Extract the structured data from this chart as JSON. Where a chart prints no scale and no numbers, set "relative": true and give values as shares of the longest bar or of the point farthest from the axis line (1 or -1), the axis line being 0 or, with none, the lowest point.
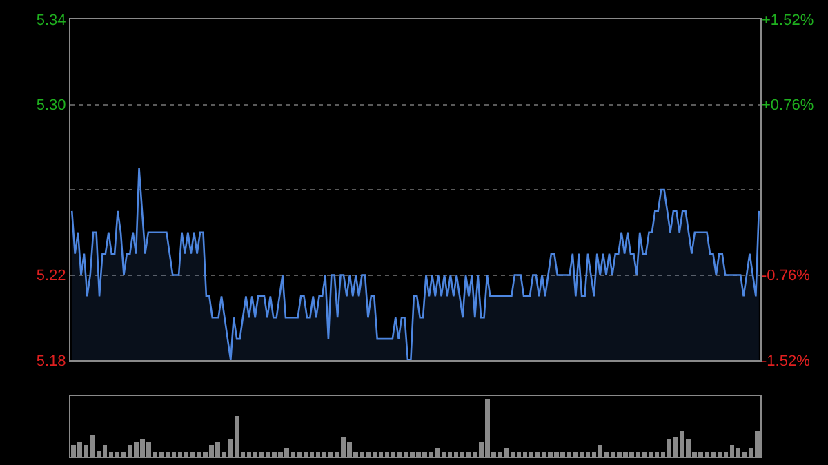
{
  "chart_data": [
    {
      "type": "area",
      "categories": [
        null,
        null,
        null,
        null,
        null,
        null,
        null,
        null,
        null,
        null,
        null,
        null,
        null,
        null,
        null,
        null,
        null,
        null,
        null,
        null,
        null,
        null,
        null,
        null,
        null,
        null,
        null,
        null,
        null,
        null,
        null,
        null,
        null,
        null,
        null,
        null,
        null,
        null,
        null,
        null,
        null,
        null,
        null,
        null,
        null,
        null,
        null,
        null,
        null,
        null,
        null,
        null,
        null,
        null,
        null,
        null,
        null,
        null,
        null,
        null,
        null,
        null,
        null,
        null,
        null,
        null,
        null,
        null,
        null,
        null,
        null,
        null,
        null,
        null,
        null,
        null,
        null,
        null,
        null,
        null,
        null,
        null,
        null,
        null,
        null,
        null,
        null,
        null,
        null,
        null,
        null,
        null,
        null,
        null,
        null,
        null,
        null,
        null,
        null,
        null,
        null,
        null,
        null,
        null,
        null,
        null,
        null,
        null,
        null,
        null,
        null,
        null,
        null,
        null,
        null,
        null,
        null,
        null,
        null,
        null,
        null,
        null,
        null,
        null,
        null,
        null,
        null,
        null,
        null,
        null,
        null,
        null,
        null,
        null,
        null,
        null,
        null,
        null,
        null,
        null,
        null,
        null,
        null,
        null,
        null,
        null,
        null,
        null,
        null,
        null,
        null,
        null,
        null,
        null,
        null,
        null,
        null,
        null,
        null,
        null,
        null,
        null,
        null,
        null,
        null,
        null,
        null,
        null,
        null,
        null,
        null,
        null,
        null,
        null,
        null,
        null,
        null,
        null,
        null,
        null,
        null,
        null,
        null,
        null,
        null,
        null,
        null,
        null,
        null,
        null,
        null,
        null,
        null,
        null,
        null,
        null,
        null,
        null,
        null,
        null,
        null,
        null,
        null,
        null,
        null,
        null,
        null,
        null,
        null,
        null,
        null,
        null,
        null,
        null,
        null,
        null,
        null,
        null,
        null,
        null,
        null,
        null,
        null,
        null,
        null,
        null
      ],
      "series": [
        {
          "color": "#4d86e0",
          "values": [
            5.25,
            5.23,
            5.24,
            5.22,
            5.23,
            5.21,
            5.22,
            5.24,
            5.24,
            5.21,
            5.23,
            5.23,
            5.24,
            5.23,
            5.23,
            5.25,
            5.24,
            5.22,
            5.23,
            5.23,
            5.24,
            5.23,
            5.27,
            5.25,
            5.23,
            5.24,
            5.24,
            5.24,
            5.24,
            5.24,
            5.24,
            5.24,
            5.23,
            5.22,
            5.22,
            5.22,
            5.24,
            5.23,
            5.24,
            5.23,
            5.24,
            5.23,
            5.24,
            5.24,
            5.21,
            5.21,
            5.2,
            5.2,
            5.2,
            5.21,
            5.2,
            5.19,
            5.18,
            5.2,
            5.19,
            5.19,
            5.2,
            5.21,
            5.2,
            5.21,
            5.2,
            5.21,
            5.21,
            5.21,
            5.2,
            5.21,
            5.2,
            5.2,
            5.21,
            5.22,
            5.2,
            5.2,
            5.2,
            5.2,
            5.2,
            5.21,
            5.21,
            5.2,
            5.2,
            5.21,
            5.2,
            5.21,
            5.21,
            5.22,
            5.19,
            5.22,
            5.22,
            5.2,
            5.22,
            5.22,
            5.21,
            5.22,
            5.21,
            5.22,
            5.21,
            5.22,
            5.22,
            5.2,
            5.21,
            5.21,
            5.19,
            5.19,
            5.19,
            5.19,
            5.19,
            5.19,
            5.2,
            5.19,
            5.2,
            5.2,
            5.18,
            5.18,
            5.21,
            5.21,
            5.2,
            5.2,
            5.22,
            5.21,
            5.22,
            5.21,
            5.22,
            5.21,
            5.22,
            5.21,
            5.22,
            5.21,
            5.22,
            5.21,
            5.2,
            5.22,
            5.21,
            5.22,
            5.2,
            5.22,
            5.2,
            5.2,
            5.22,
            5.21,
            5.21,
            5.21,
            5.21,
            5.21,
            5.21,
            5.21,
            5.21,
            5.22,
            5.22,
            5.22,
            5.21,
            5.21,
            5.21,
            5.22,
            5.22,
            5.21,
            5.22,
            5.21,
            5.22,
            5.23,
            5.23,
            5.22,
            5.22,
            5.22,
            5.22,
            5.22,
            5.23,
            5.21,
            5.23,
            5.21,
            5.21,
            5.23,
            5.22,
            5.21,
            5.23,
            5.22,
            5.23,
            5.22,
            5.23,
            5.22,
            5.23,
            5.23,
            5.24,
            5.23,
            5.24,
            5.23,
            5.23,
            5.22,
            5.24,
            5.23,
            5.23,
            5.24,
            5.24,
            5.25,
            5.25,
            5.26,
            5.26,
            5.25,
            5.24,
            5.25,
            5.25,
            5.24,
            5.25,
            5.25,
            5.24,
            5.23,
            5.24,
            5.24,
            5.24,
            5.24,
            5.24,
            5.23,
            5.23,
            5.22,
            5.23,
            5.23,
            5.22,
            5.22,
            5.22,
            5.22,
            5.22,
            5.22,
            5.21,
            5.22,
            5.23,
            5.22,
            5.21,
            5.25
          ]
        }
      ],
      "ylim": [
        5.18,
        5.34
      ],
      "yticks": [
        5.18,
        5.22,
        {
          "value": 5.26,
          "label": null
        },
        {
          "value": 5.3,
          "label": "5.30"
        },
        5.34
      ],
      "y2lim": [
        -1.52,
        1.52
      ],
      "y2ticks": [
        {
          "value": -1.52,
          "label": "-1.52%"
        },
        {
          "value": -0.76,
          "label": "-0.76%"
        },
        {
          "value": 0,
          "label": null
        },
        {
          "value": 0.76,
          "label": "+0.76%"
        },
        {
          "value": 1.52,
          "label": "+1.52%"
        }
      ],
      "grid": "y"
    },
    {
      "type": "bar",
      "relative": true,
      "color": "#8a8a8a",
      "categories": [
        null,
        null,
        null,
        null,
        null,
        null,
        null,
        null,
        null,
        null,
        null,
        null,
        null,
        null,
        null,
        null,
        null,
        null,
        null,
        null,
        null,
        null,
        null,
        null,
        null,
        null,
        null,
        null,
        null,
        null,
        null,
        null,
        null,
        null,
        null,
        null,
        null,
        null,
        null,
        null,
        null,
        null,
        null,
        null,
        null,
        null,
        null,
        null,
        null,
        null,
        null,
        null,
        null,
        null,
        null,
        null,
        null,
        null,
        null,
        null,
        null,
        null,
        null,
        null,
        null,
        null,
        null,
        null,
        null,
        null,
        null,
        null,
        null,
        null,
        null,
        null,
        null,
        null,
        null,
        null,
        null,
        null,
        null,
        null,
        null,
        null,
        null,
        null,
        null,
        null,
        null,
        null,
        null,
        null,
        null,
        null,
        null,
        null,
        null,
        null,
        null,
        null,
        null,
        null,
        null,
        null,
        null,
        null,
        null,
        null
      ],
      "values": [
        0.2,
        0.25,
        0.2,
        0.38,
        0.1,
        0.2,
        0.08,
        0.08,
        0.08,
        0.2,
        0.25,
        0.3,
        0.25,
        0.08,
        0.08,
        0.08,
        0.08,
        0.08,
        0.08,
        0.08,
        0.08,
        0.08,
        0.2,
        0.25,
        0.08,
        0.3,
        0.71,
        0.08,
        0.08,
        0.08,
        0.08,
        0.08,
        0.08,
        0.08,
        0.15,
        0.08,
        0.08,
        0.08,
        0.08,
        0.08,
        0.08,
        0.08,
        0.08,
        0.35,
        0.25,
        0.08,
        0.08,
        0.08,
        0.08,
        0.08,
        0.08,
        0.08,
        0.08,
        0.08,
        0.08,
        0.08,
        0.08,
        0.08,
        0.15,
        0.08,
        0.08,
        0.08,
        0.08,
        0.08,
        0.08,
        0.25,
        1,
        0.08,
        0.08,
        0.15,
        0.08,
        0.08,
        0.08,
        0.08,
        0.08,
        0.08,
        0.08,
        0.08,
        0.08,
        0.08,
        0.08,
        0.08,
        0.08,
        0.08,
        0.2,
        0.08,
        0.08,
        0.08,
        0.08,
        0.08,
        0.08,
        0.08,
        0.08,
        0.08,
        0.08,
        0.3,
        0.35,
        0.44,
        0.3,
        0.08,
        0.08,
        0.08,
        0.08,
        0.08,
        0.08,
        0.2,
        0.15,
        0.08,
        0.15,
        0.44
      ]
    }
  ]
}
